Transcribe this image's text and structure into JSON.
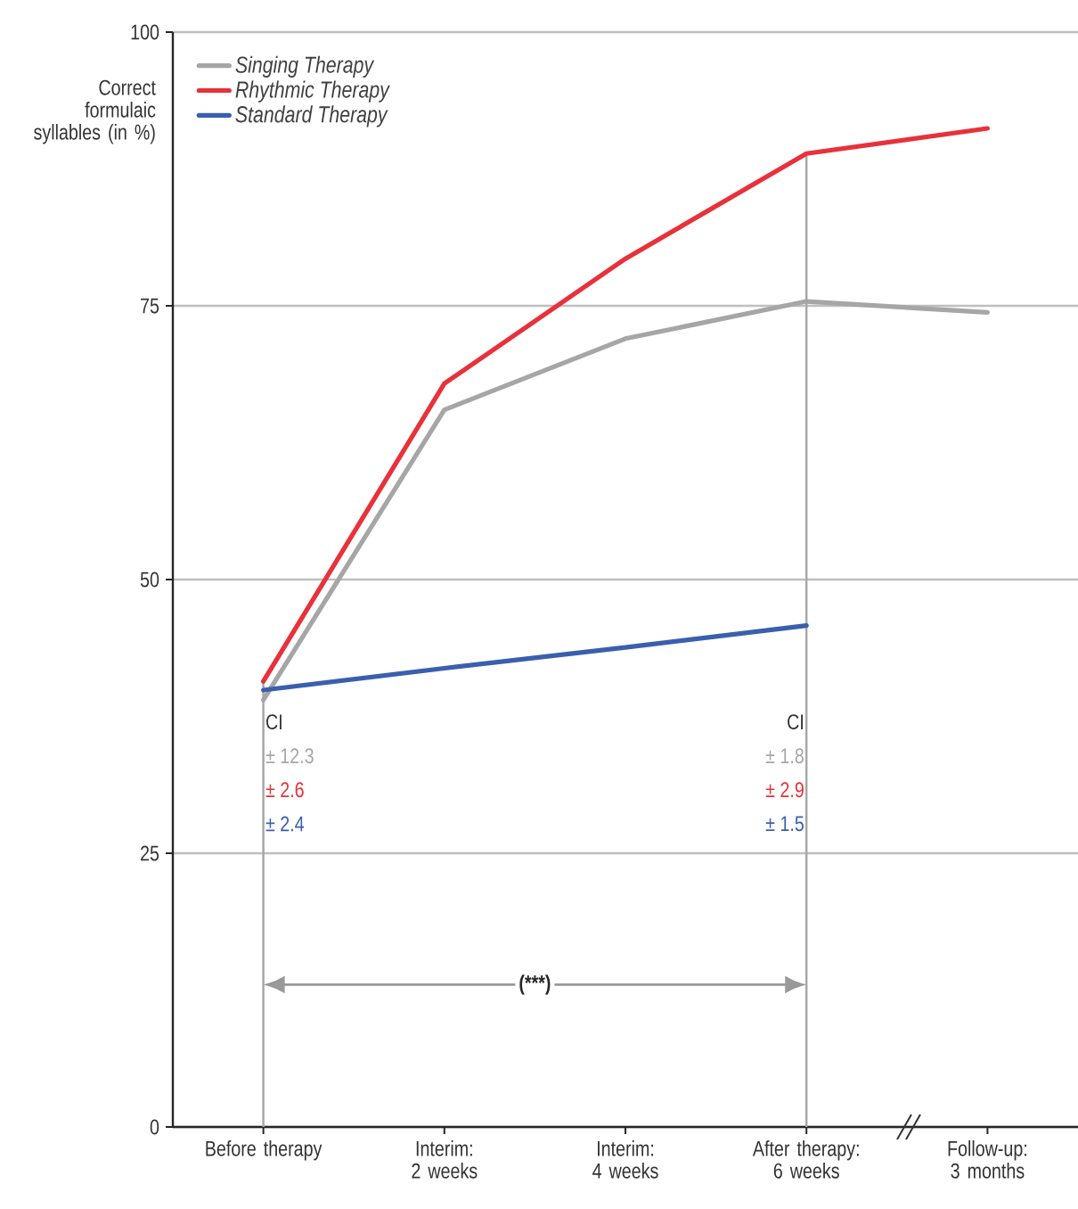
{
  "chart_data": {
    "type": "line",
    "categories": [
      "Before therapy",
      "Interim: 2 weeks",
      "Interim: 4 weeks",
      "After therapy: 6 weeks",
      "Follow-up: 3 months"
    ],
    "series": [
      {
        "name": "Singing Therapy",
        "color": "#a6a6a6",
        "values": [
          39,
          65.5,
          72,
          75.4,
          74.4
        ]
      },
      {
        "name": "Rhythmic Therapy",
        "color": "#e8313a",
        "values": [
          40.7,
          67.9,
          79.3,
          88.9,
          91.2
        ]
      },
      {
        "name": "Standard Therapy",
        "color": "#3a5fae",
        "values": [
          39.9,
          41.9,
          43.8,
          45.8,
          null
        ]
      }
    ],
    "ylabel": "Correct formulaic syllables (in %)",
    "ylim": [
      0,
      100
    ],
    "yticks": [
      0,
      25,
      50,
      75,
      100
    ],
    "grid": "y",
    "legend": "top left",
    "marker": "none",
    "line_style": "solid",
    "ref_lines": [
      {
        "axis": "x",
        "value": "Before therapy",
        "color": "#a6a6a6"
      },
      {
        "axis": "x",
        "value": "After therapy: 6 weeks",
        "color": "#a6a6a6"
      }
    ],
    "annotations": [
      "CI",
      "± 12.3",
      "± 2.6",
      "± 2.4",
      "CI",
      "± 1.8",
      "± 2.9",
      "± 1.5",
      {
        "text": "(***)",
        "y": 13
      }
    ]
  }
}
